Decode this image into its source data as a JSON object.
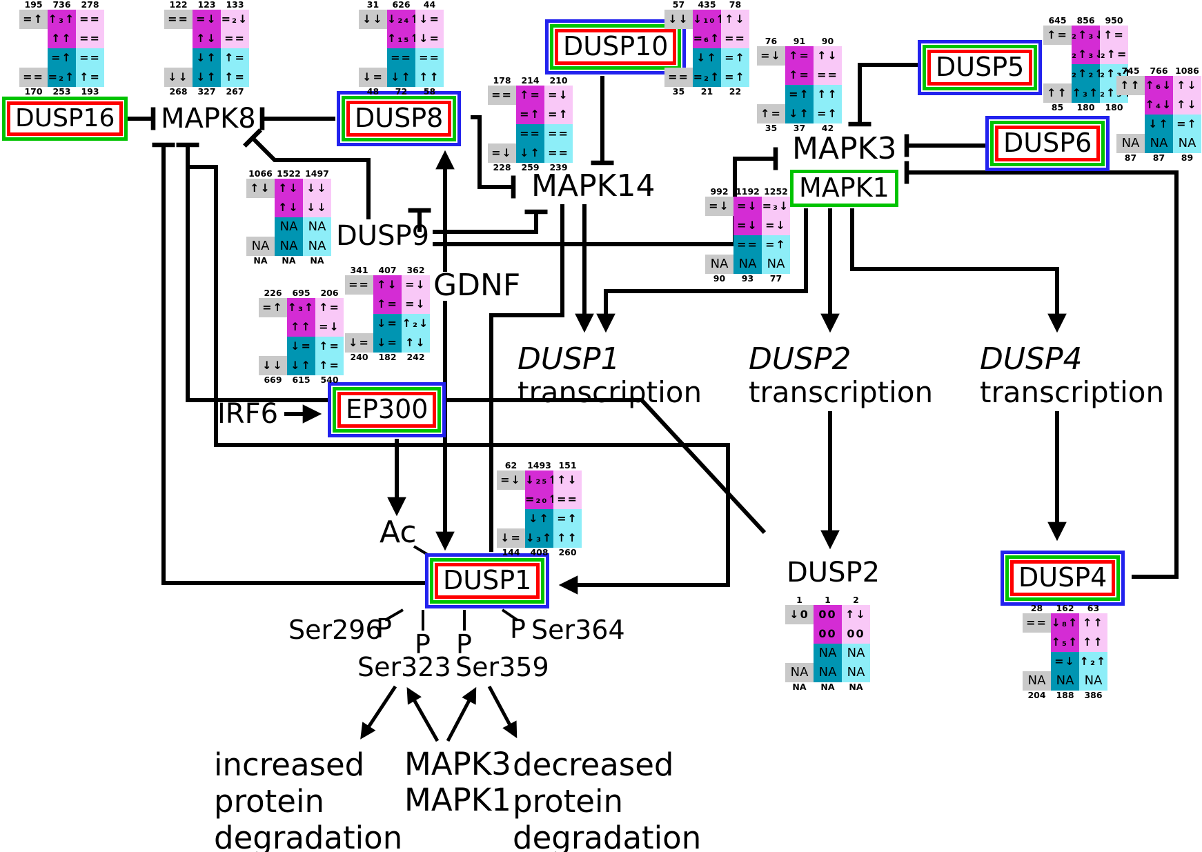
{
  "nodes": {
    "dusp16": {
      "label": "DUSP16"
    },
    "mapk8": {
      "label": "MAPK8"
    },
    "dusp8": {
      "label": "DUSP8"
    },
    "dusp10": {
      "label": "DUSP10"
    },
    "mapk14": {
      "label": "MAPK14"
    },
    "mapk3": {
      "label": "MAPK3"
    },
    "mapk1": {
      "label": "MAPK1"
    },
    "dusp5": {
      "label": "DUSP5"
    },
    "dusp6": {
      "label": "DUSP6"
    },
    "dusp9": {
      "label": "DUSP9"
    },
    "gdnf": {
      "label": "GDN​F"
    },
    "irf6": {
      "label": "IRF6"
    },
    "ep300": {
      "label": "EP300"
    },
    "ac": {
      "label": "Ac"
    },
    "dusp1": {
      "label": "DUSP1"
    },
    "dusp2": {
      "label": "DUSP2"
    },
    "dusp4": {
      "label": "DUSP4"
    }
  },
  "transcription": [
    {
      "gene": "DUSP1",
      "word": "transcription"
    },
    {
      "gene": "DUSP2",
      "word": "transcription"
    },
    {
      "gene": "DUSP4",
      "word": "transcription"
    }
  ],
  "phospho": {
    "p": "P",
    "ser296": "Ser296",
    "ser323": "Ser323",
    "ser359": "Ser359",
    "ser364": "Ser364"
  },
  "bottom": {
    "increased": "increased\nprotein\ndegradation",
    "kinases": "MAPK3\nMAPK1",
    "decreased": "decreased\nprotein\ndegradation"
  },
  "colors": {
    "magenta": "#d42cd4",
    "pink": "#f9c8f7",
    "teal": "#0095b2",
    "cyan": "#8deef8",
    "gray": "#c9c9c9",
    "box_blue": "#2222ee",
    "box_green": "#00c300",
    "box_red": "#ff0000",
    "line": "#000000"
  },
  "glyphs": {
    "dusp16": {
      "top": [
        "195",
        "736",
        "278"
      ],
      "bottom": [
        "170",
        "253",
        "193"
      ],
      "rows": [
        [
          "=↑",
          "↑₃↑",
          "=="
        ],
        [
          "",
          "↑↑",
          "=="
        ],
        [
          "",
          "=↑",
          "=="
        ],
        [
          "==",
          "=₂↑",
          "↑="
        ]
      ]
    },
    "mapk8": {
      "top": [
        "122",
        "123",
        "133"
      ],
      "bottom": [
        "268",
        "327",
        "267"
      ],
      "rows": [
        [
          "==",
          "=↓",
          "=₂↓"
        ],
        [
          "",
          "↑↓",
          "=="
        ],
        [
          "",
          "↓↑",
          "↑="
        ],
        [
          "↓↓",
          "↓↑",
          "↑="
        ]
      ]
    },
    "dusp8": {
      "top": [
        "31",
        "626",
        "44"
      ],
      "bottom": [
        "48",
        "72",
        "58"
      ],
      "rows": [
        [
          "↓↓",
          "↓₂₄↑",
          "↓="
        ],
        [
          "",
          "↑₁₅↑",
          "↓="
        ],
        [
          "",
          "==",
          "=="
        ],
        [
          "↓=",
          "↓↑",
          "↑↑"
        ]
      ]
    },
    "dusp10": {
      "top": [
        "57",
        "435",
        "78"
      ],
      "bottom": [
        "35",
        "21",
        "22"
      ],
      "rows": [
        [
          "↓↓",
          "↓₁₀↑",
          "↑↓"
        ],
        [
          "",
          "=₆↑",
          "=="
        ],
        [
          "",
          "↓↑",
          "=↑"
        ],
        [
          "==",
          "=₂↑",
          "=↑"
        ]
      ]
    },
    "mapk14": {
      "top": [
        "178",
        "214",
        "210"
      ],
      "bottom": [
        "228",
        "259",
        "239"
      ],
      "rows": [
        [
          "==",
          "↑=",
          "=↓"
        ],
        [
          "",
          "=↑",
          "=↑"
        ],
        [
          "",
          "==",
          "=="
        ],
        [
          "=↓",
          "↓↑",
          "=="
        ]
      ]
    },
    "mapk3": {
      "top": [
        "76",
        "91",
        "90"
      ],
      "bottom": [
        "35",
        "37",
        "42"
      ],
      "rows": [
        [
          "=↓",
          "↑=",
          "↑↓"
        ],
        [
          "",
          "↑=",
          "=="
        ],
        [
          "",
          "=↑",
          "↑↑"
        ],
        [
          "↑=",
          "↓↑",
          "=↑"
        ]
      ]
    },
    "dusp5": {
      "top": [
        "645",
        "856",
        "950"
      ],
      "bottom": [
        "85",
        "180",
        "180"
      ],
      "rows": [
        [
          "↑=",
          "₂↑₃↓",
          "↑="
        ],
        [
          "",
          "₂↑₃↓",
          "₂↑="
        ],
        [
          "",
          "₂↑₂↑",
          "₂↑₃↑"
        ],
        [
          "↑↑",
          "↑₃↑",
          "₂↑₃↑"
        ]
      ]
    },
    "dusp6": {
      "top": [
        "745",
        "766",
        "1086"
      ],
      "bottom": [
        "87",
        "87",
        "89"
      ],
      "rows": [
        [
          "↑↑",
          "↑₆↓",
          "↑↓"
        ],
        [
          "",
          "↑₄↓",
          "↑↓"
        ],
        [
          "",
          "↓↑",
          "=↑"
        ],
        [
          "NA",
          "NA",
          "NA"
        ]
      ]
    },
    "dusp9": {
      "top": [
        "1066",
        "1522",
        "1497"
      ],
      "bottom": [
        "NA",
        "NA",
        "NA"
      ],
      "rows": [
        [
          "↑↓",
          "↑↓",
          "↓↓"
        ],
        [
          "",
          "↑↓",
          "↓↓"
        ],
        [
          "",
          "NA",
          "NA"
        ],
        [
          "NA",
          "NA",
          "NA"
        ]
      ]
    },
    "ep300": {
      "top": [
        "226",
        "695",
        "206"
      ],
      "bottom": [
        "669",
        "615",
        "540"
      ],
      "rows": [
        [
          "=↑",
          "↑₃↑",
          "↑="
        ],
        [
          "",
          "↑↑",
          "=↓"
        ],
        [
          "",
          "↓=",
          "↑="
        ],
        [
          "↓↓",
          "↓↑",
          "↑="
        ]
      ]
    },
    "gdnf": {
      "top": [
        "341",
        "407",
        "362"
      ],
      "bottom": [
        "240",
        "182",
        "242"
      ],
      "rows": [
        [
          "==",
          "↑↓",
          "=↓"
        ],
        [
          "",
          "↑=",
          "=↓"
        ],
        [
          "",
          "↓=",
          "↑₂↓"
        ],
        [
          "↓=",
          "↓=",
          "↑↓"
        ]
      ]
    },
    "mapk1": {
      "top": [
        "992",
        "1192",
        "1252"
      ],
      "bottom": [
        "90",
        "93",
        "77"
      ],
      "rows": [
        [
          "=↓",
          "=↓",
          "=₃↓"
        ],
        [
          "",
          "=↓",
          "=↓"
        ],
        [
          "",
          "==",
          "=↑"
        ],
        [
          "NA",
          "NA",
          "NA"
        ]
      ]
    },
    "dusp1": {
      "top": [
        "62",
        "1493",
        "151"
      ],
      "bottom": [
        "144",
        "408",
        "260"
      ],
      "rows": [
        [
          "=↓",
          "↓₂₅↑",
          "↑↓"
        ],
        [
          "",
          "=₂₀↑",
          "=="
        ],
        [
          "",
          "↓↑",
          "=↑"
        ],
        [
          "↓=",
          "↓₃↑",
          "↑↑"
        ]
      ]
    },
    "dusp2": {
      "top": [
        "1",
        "1",
        "2"
      ],
      "bottom": [
        "NA",
        "NA",
        "NA"
      ],
      "rows": [
        [
          "↓0",
          "00",
          "↑↓"
        ],
        [
          "",
          "00",
          "00"
        ],
        [
          "",
          "NA",
          "NA"
        ],
        [
          "NA",
          "NA",
          "NA"
        ]
      ]
    },
    "dusp4": {
      "top": [
        "28",
        "162",
        "63"
      ],
      "bottom": [
        "204",
        "188",
        "386"
      ],
      "rows": [
        [
          "==",
          "↓₈↑",
          "↑↑"
        ],
        [
          "",
          "↑₅↑",
          "↑↑"
        ],
        [
          "",
          "=↓",
          "↑₂↑"
        ],
        [
          "NA",
          "NA",
          "NA"
        ]
      ]
    }
  },
  "edges": [
    {
      "from": "DUSP16",
      "to": "MAPK8",
      "type": "inhibit"
    },
    {
      "from": "DUSP8",
      "to": "MAPK8",
      "type": "inhibit"
    },
    {
      "from": "DUSP9",
      "to": "MAPK8",
      "type": "inhibit"
    },
    {
      "from": "DUSP8",
      "to": "MAPK14",
      "type": "inhibit"
    },
    {
      "from": "DUSP10",
      "to": "MAPK14",
      "type": "inhibit"
    },
    {
      "from": "DUSP9",
      "to": "MAPK14",
      "type": "inhibit"
    },
    {
      "from": "DUSP9",
      "to": "MAPK3/MAPK1",
      "type": "inhibit"
    },
    {
      "from": "DUSP5",
      "to": "MAPK3",
      "type": "inhibit"
    },
    {
      "from": "DUSP6",
      "to": "MAPK3",
      "type": "inhibit"
    },
    {
      "from": "DUSP4",
      "to": "MAPK1",
      "type": "inhibit"
    },
    {
      "from": "GDNF",
      "to": "DUSP8",
      "type": "activate"
    },
    {
      "from": "GDNF",
      "to": "DUSP1",
      "type": "activate"
    },
    {
      "from": "IRF6",
      "to": "EP300",
      "type": "activate"
    },
    {
      "from": "EP300",
      "to": "Ac",
      "type": "activate"
    },
    {
      "from": "MAPK14",
      "to": "DUSP1 transcription",
      "type": "activate"
    },
    {
      "from": "MAPK3/MAPK1",
      "to": "DUSP1 transcription",
      "type": "activate"
    },
    {
      "from": "MAPK3/MAPK1",
      "to": "DUSP2 transcription",
      "type": "activate"
    },
    {
      "from": "MAPK3/MAPK1",
      "to": "DUSP4 transcription",
      "type": "activate"
    },
    {
      "from": "DUSP2 transcription",
      "to": "DUSP2",
      "type": "activate"
    },
    {
      "from": "DUSP4 transcription",
      "to": "DUSP4",
      "type": "activate"
    },
    {
      "from": "DUSP1",
      "to": "MAPK8",
      "type": "inhibit"
    },
    {
      "from": "DUSP2",
      "to": "MAPK8",
      "type": "inhibit"
    }
  ]
}
